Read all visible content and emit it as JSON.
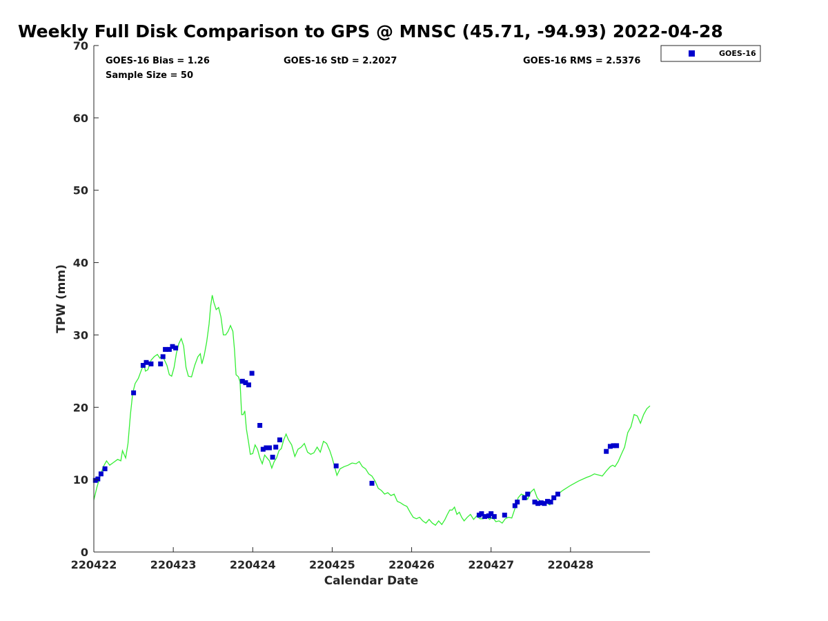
{
  "chart_data": {
    "type": "scatter",
    "title": "Weekly Full Disk Comparison to GPS @ MNSC (45.71, -94.93) 2022-04-28",
    "xlabel": "Calendar Date",
    "ylabel": "TPW (mm)",
    "xlim": [
      0,
      7
    ],
    "ylim": [
      0,
      70
    ],
    "yticks": [
      0,
      10,
      20,
      30,
      40,
      50,
      60,
      70
    ],
    "xticks": [
      {
        "value": 0,
        "label": "220422"
      },
      {
        "value": 1,
        "label": "220423"
      },
      {
        "value": 2,
        "label": "220424"
      },
      {
        "value": 3,
        "label": "220425"
      },
      {
        "value": 4,
        "label": "220426"
      },
      {
        "value": 5,
        "label": "220427"
      },
      {
        "value": 6,
        "label": "220428"
      }
    ],
    "stats": {
      "bias": "GOES-16 Bias = 1.26",
      "std": "GOES-16 StD = 2.2027",
      "rms": "GOES-16 RMS = 2.5376",
      "sample_size": "Sample Size = 50"
    },
    "legend": {
      "label": "GOES-16",
      "position": "top-right-outside"
    },
    "colors": {
      "goes": "#0000cc",
      "gps": "#33ee33",
      "axis": "#262626"
    },
    "series": [
      {
        "name": "GOES-16",
        "kind": "scatter",
        "points": [
          [
            0.02,
            9.9
          ],
          [
            0.05,
            10.1
          ],
          [
            0.09,
            10.8
          ],
          [
            0.14,
            11.5
          ],
          [
            0.5,
            22.0
          ],
          [
            0.62,
            25.8
          ],
          [
            0.66,
            26.2
          ],
          [
            0.72,
            26.0
          ],
          [
            0.84,
            26.0
          ],
          [
            0.87,
            27.0
          ],
          [
            0.9,
            28.0
          ],
          [
            0.95,
            28.0
          ],
          [
            0.99,
            28.4
          ],
          [
            1.03,
            28.2
          ],
          [
            1.87,
            23.6
          ],
          [
            1.91,
            23.4
          ],
          [
            1.95,
            23.1
          ],
          [
            1.99,
            24.7
          ],
          [
            2.09,
            17.5
          ],
          [
            2.13,
            14.2
          ],
          [
            2.17,
            14.4
          ],
          [
            2.21,
            14.4
          ],
          [
            2.25,
            13.1
          ],
          [
            2.29,
            14.5
          ],
          [
            2.34,
            15.5
          ],
          [
            3.05,
            11.9
          ],
          [
            3.5,
            9.5
          ],
          [
            4.85,
            5.1
          ],
          [
            4.88,
            5.3
          ],
          [
            4.92,
            4.9
          ],
          [
            4.97,
            5.0
          ],
          [
            5.0,
            5.3
          ],
          [
            5.04,
            4.9
          ],
          [
            5.17,
            5.1
          ],
          [
            5.3,
            6.4
          ],
          [
            5.33,
            6.9
          ],
          [
            5.42,
            7.5
          ],
          [
            5.46,
            8.0
          ],
          [
            5.55,
            6.9
          ],
          [
            5.59,
            6.7
          ],
          [
            5.63,
            6.8
          ],
          [
            5.67,
            6.7
          ],
          [
            5.71,
            7.0
          ],
          [
            5.75,
            6.9
          ],
          [
            5.79,
            7.5
          ],
          [
            5.84,
            8.0
          ],
          [
            6.45,
            13.9
          ],
          [
            6.5,
            14.6
          ],
          [
            6.54,
            14.7
          ],
          [
            6.58,
            14.7
          ]
        ]
      },
      {
        "name": "GPS",
        "kind": "line",
        "points": [
          [
            0.0,
            7.2
          ],
          [
            0.04,
            9.0
          ],
          [
            0.08,
            10.5
          ],
          [
            0.12,
            11.8
          ],
          [
            0.16,
            12.6
          ],
          [
            0.2,
            12.0
          ],
          [
            0.25,
            12.4
          ],
          [
            0.3,
            12.8
          ],
          [
            0.34,
            12.6
          ],
          [
            0.36,
            14.0
          ],
          [
            0.4,
            13.0
          ],
          [
            0.43,
            15.0
          ],
          [
            0.46,
            19.0
          ],
          [
            0.49,
            22.0
          ],
          [
            0.52,
            23.3
          ],
          [
            0.56,
            24.0
          ],
          [
            0.6,
            25.2
          ],
          [
            0.63,
            26.0
          ],
          [
            0.65,
            25.0
          ],
          [
            0.68,
            25.2
          ],
          [
            0.72,
            26.5
          ],
          [
            0.76,
            27.0
          ],
          [
            0.8,
            27.3
          ],
          [
            0.83,
            26.8
          ],
          [
            0.86,
            27.2
          ],
          [
            0.89,
            26.5
          ],
          [
            0.92,
            25.8
          ],
          [
            0.95,
            24.5
          ],
          [
            0.98,
            24.3
          ],
          [
            1.01,
            25.5
          ],
          [
            1.04,
            27.5
          ],
          [
            1.07,
            28.8
          ],
          [
            1.1,
            29.5
          ],
          [
            1.13,
            28.5
          ],
          [
            1.16,
            25.5
          ],
          [
            1.19,
            24.3
          ],
          [
            1.23,
            24.2
          ],
          [
            1.27,
            25.8
          ],
          [
            1.31,
            27.0
          ],
          [
            1.34,
            27.4
          ],
          [
            1.36,
            26.0
          ],
          [
            1.39,
            27.2
          ],
          [
            1.42,
            29.0
          ],
          [
            1.45,
            31.5
          ],
          [
            1.47,
            34.0
          ],
          [
            1.49,
            35.5
          ],
          [
            1.51,
            34.5
          ],
          [
            1.54,
            33.5
          ],
          [
            1.57,
            33.8
          ],
          [
            1.6,
            32.5
          ],
          [
            1.63,
            30.0
          ],
          [
            1.66,
            30.0
          ],
          [
            1.69,
            30.5
          ],
          [
            1.72,
            31.3
          ],
          [
            1.75,
            30.5
          ],
          [
            1.77,
            28.0
          ],
          [
            1.79,
            24.5
          ],
          [
            1.82,
            24.2
          ],
          [
            1.84,
            23.5
          ],
          [
            1.86,
            19.0
          ],
          [
            1.88,
            19.0
          ],
          [
            1.9,
            19.5
          ],
          [
            1.92,
            17.0
          ],
          [
            1.95,
            15.0
          ],
          [
            1.97,
            13.5
          ],
          [
            2.0,
            13.6
          ],
          [
            2.03,
            14.8
          ],
          [
            2.06,
            14.2
          ],
          [
            2.09,
            13.0
          ],
          [
            2.12,
            12.2
          ],
          [
            2.15,
            13.4
          ],
          [
            2.18,
            13.0
          ],
          [
            2.21,
            12.6
          ],
          [
            2.24,
            11.6
          ],
          [
            2.27,
            12.5
          ],
          [
            2.3,
            13.0
          ],
          [
            2.33,
            14.0
          ],
          [
            2.36,
            14.3
          ],
          [
            2.39,
            15.5
          ],
          [
            2.42,
            16.3
          ],
          [
            2.45,
            15.5
          ],
          [
            2.49,
            14.8
          ],
          [
            2.53,
            13.2
          ],
          [
            2.57,
            14.2
          ],
          [
            2.61,
            14.5
          ],
          [
            2.65,
            15.0
          ],
          [
            2.69,
            13.8
          ],
          [
            2.73,
            13.5
          ],
          [
            2.77,
            13.7
          ],
          [
            2.81,
            14.5
          ],
          [
            2.85,
            13.8
          ],
          [
            2.89,
            15.3
          ],
          [
            2.93,
            15.0
          ],
          [
            2.97,
            14.0
          ],
          [
            3.0,
            13.0
          ],
          [
            3.03,
            11.8
          ],
          [
            3.06,
            10.6
          ],
          [
            3.1,
            11.5
          ],
          [
            3.15,
            11.8
          ],
          [
            3.2,
            12.0
          ],
          [
            3.25,
            12.3
          ],
          [
            3.3,
            12.2
          ],
          [
            3.34,
            12.5
          ],
          [
            3.38,
            11.8
          ],
          [
            3.42,
            11.5
          ],
          [
            3.46,
            10.8
          ],
          [
            3.5,
            10.5
          ],
          [
            3.54,
            9.8
          ],
          [
            3.58,
            8.8
          ],
          [
            3.62,
            8.5
          ],
          [
            3.66,
            8.0
          ],
          [
            3.7,
            8.2
          ],
          [
            3.74,
            7.8
          ],
          [
            3.78,
            8.0
          ],
          [
            3.82,
            7.0
          ],
          [
            3.86,
            6.8
          ],
          [
            3.9,
            6.5
          ],
          [
            3.94,
            6.3
          ],
          [
            3.98,
            5.5
          ],
          [
            4.02,
            4.8
          ],
          [
            4.06,
            4.6
          ],
          [
            4.1,
            4.8
          ],
          [
            4.14,
            4.3
          ],
          [
            4.18,
            4.0
          ],
          [
            4.22,
            4.5
          ],
          [
            4.26,
            4.0
          ],
          [
            4.3,
            3.7
          ],
          [
            4.34,
            4.3
          ],
          [
            4.38,
            3.8
          ],
          [
            4.42,
            4.5
          ],
          [
            4.45,
            5.2
          ],
          [
            4.48,
            5.8
          ],
          [
            4.51,
            5.8
          ],
          [
            4.54,
            6.2
          ],
          [
            4.57,
            5.2
          ],
          [
            4.6,
            5.5
          ],
          [
            4.63,
            4.8
          ],
          [
            4.66,
            4.3
          ],
          [
            4.7,
            4.8
          ],
          [
            4.74,
            5.2
          ],
          [
            4.78,
            4.5
          ],
          [
            4.82,
            5.0
          ],
          [
            4.86,
            4.6
          ],
          [
            4.9,
            4.6
          ],
          [
            4.94,
            5.0
          ],
          [
            4.98,
            4.5
          ],
          [
            5.02,
            4.8
          ],
          [
            5.06,
            4.2
          ],
          [
            5.1,
            4.3
          ],
          [
            5.14,
            4.0
          ],
          [
            5.18,
            4.6
          ],
          [
            5.22,
            4.8
          ],
          [
            5.26,
            4.7
          ],
          [
            5.3,
            6.0
          ],
          [
            5.34,
            7.5
          ],
          [
            5.38,
            8.0
          ],
          [
            5.42,
            7.8
          ],
          [
            5.46,
            7.3
          ],
          [
            5.5,
            8.3
          ],
          [
            5.54,
            8.7
          ],
          [
            5.58,
            7.5
          ],
          [
            5.62,
            7.0
          ],
          [
            5.66,
            6.5
          ],
          [
            5.7,
            6.8
          ],
          [
            5.74,
            6.5
          ],
          [
            5.78,
            7.5
          ],
          [
            5.82,
            7.8
          ],
          [
            5.9,
            8.5
          ],
          [
            6.0,
            9.2
          ],
          [
            6.1,
            9.8
          ],
          [
            6.2,
            10.3
          ],
          [
            6.25,
            10.5
          ],
          [
            6.3,
            10.8
          ],
          [
            6.4,
            10.5
          ],
          [
            6.45,
            11.2
          ],
          [
            6.5,
            11.8
          ],
          [
            6.53,
            12.0
          ],
          [
            6.56,
            11.8
          ],
          [
            6.6,
            12.5
          ],
          [
            6.64,
            13.5
          ],
          [
            6.68,
            14.5
          ],
          [
            6.72,
            16.5
          ],
          [
            6.76,
            17.3
          ],
          [
            6.8,
            19.0
          ],
          [
            6.84,
            18.8
          ],
          [
            6.88,
            17.8
          ],
          [
            6.92,
            19.0
          ],
          [
            6.96,
            19.8
          ],
          [
            7.0,
            20.2
          ]
        ]
      }
    ]
  }
}
